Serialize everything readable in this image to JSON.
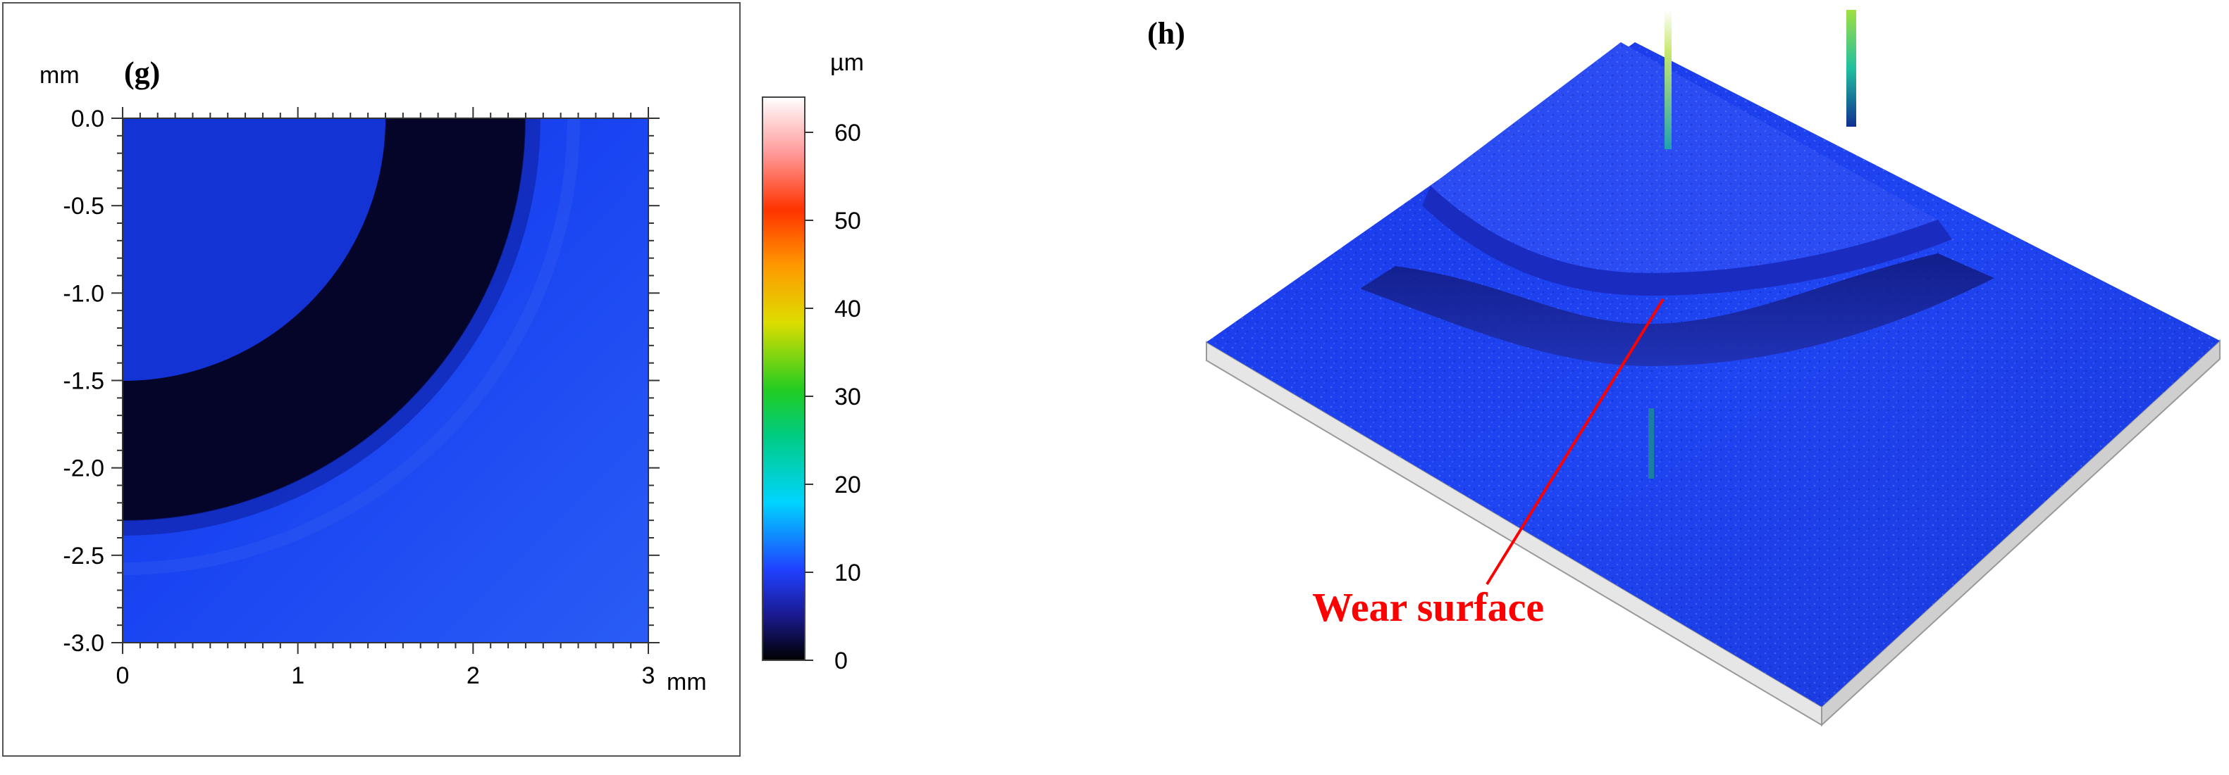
{
  "chart_data": [
    {
      "type": "heatmap",
      "panel_label": "(g)",
      "xlabel": "mm",
      "ylabel": "mm",
      "xlim": [
        0,
        3
      ],
      "ylim": [
        -3,
        0
      ],
      "x_ticks": [
        0,
        1,
        2,
        3
      ],
      "x_tick_labels": [
        "0",
        "1",
        "2",
        "3"
      ],
      "y_ticks": [
        0,
        -0.5,
        -1,
        -1.5,
        -2,
        -2.5,
        -3
      ],
      "y_tick_labels": [
        "0.0",
        "-0.5",
        "-1.0",
        "-1.5",
        "-2.0",
        "-2.5",
        "-3.0"
      ],
      "colorbar": {
        "label": "µm",
        "range": [
          0,
          64
        ],
        "ticks": [
          0,
          10,
          20,
          30,
          40,
          50,
          60
        ],
        "tick_labels": [
          "0",
          "10",
          "20",
          "30",
          "40",
          "50",
          "60"
        ]
      },
      "features": {
        "wear_groove_inner_radius_mm": 1.5,
        "wear_groove_outer_radius_mm": 2.3,
        "groove_depth_um": 0,
        "surface_height_um": 8
      }
    },
    {
      "type": "surface-3d",
      "panel_label": "(h)",
      "annotation": "Wear surface"
    }
  ],
  "colors": {
    "surface_blue": "#1a3cf0",
    "groove_dark": "#05052a",
    "annotation_red": "#ff0000",
    "substrate": "#e8e8e8"
  }
}
